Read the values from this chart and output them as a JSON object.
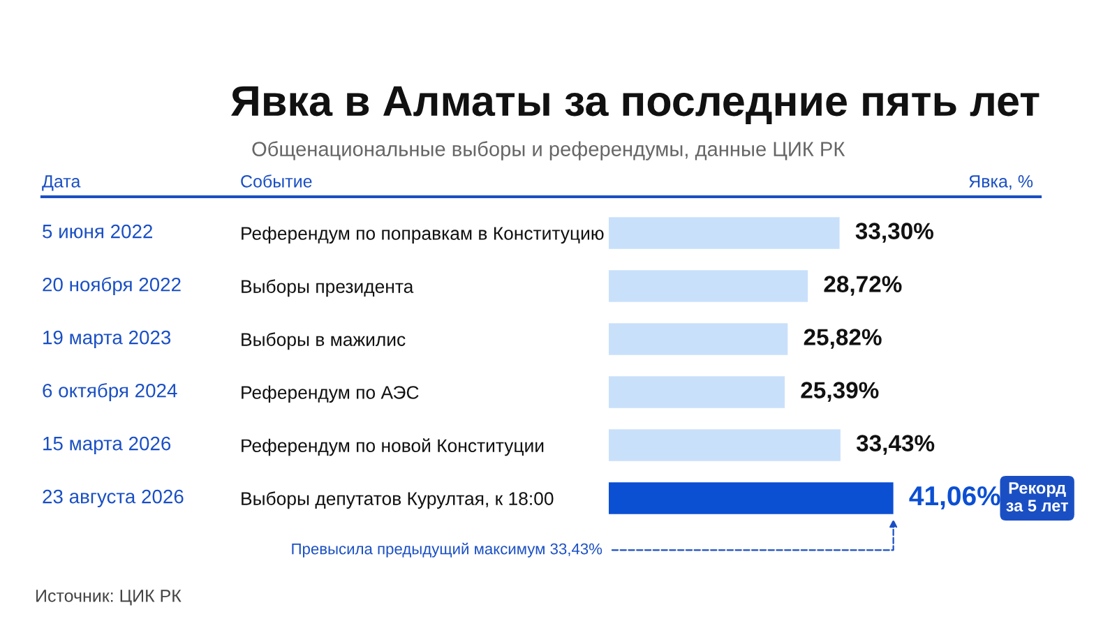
{
  "chart_data": {
    "type": "bar",
    "orientation": "horizontal",
    "title": "Явка в Алматы за последние пять лет",
    "subtitle": "Общенациональные выборы и референдумы, данные ЦИК РК",
    "categories": [
      "Референдум по поправкам в Конституцию",
      "Выборы президента",
      "Выборы в мажилис",
      "Референдум по АЭС",
      "Референдум по новой Конституции",
      "Выборы депутатов Курултая, к 18:00"
    ],
    "values": [
      33.3,
      28.72,
      25.82,
      25.39,
      33.43,
      41.06
    ],
    "value_labels": [
      "33,30%",
      "28,72%",
      "25,82%",
      "25,39%",
      "33,43%",
      "41,06%"
    ],
    "colors": [
      "#c9e0fb",
      "#c9e0fb",
      "#c9e0fb",
      "#c9e0fb",
      "#c9e0fb",
      "#0b4fd3"
    ],
    "grid": false,
    "legend": false,
    "annotations": [
      "Дата",
      "Событие",
      "Явка, %",
      "5 июня 2022",
      "20 ноября 2022",
      "19 марта 2023",
      "6 октября 2024",
      "15 марта 2026",
      "23 августа 2026",
      "Рекорд\nза 5 лет",
      "Превысила предыдущий максимум 33,43%",
      "Источник: ЦИК РК"
    ]
  }
}
